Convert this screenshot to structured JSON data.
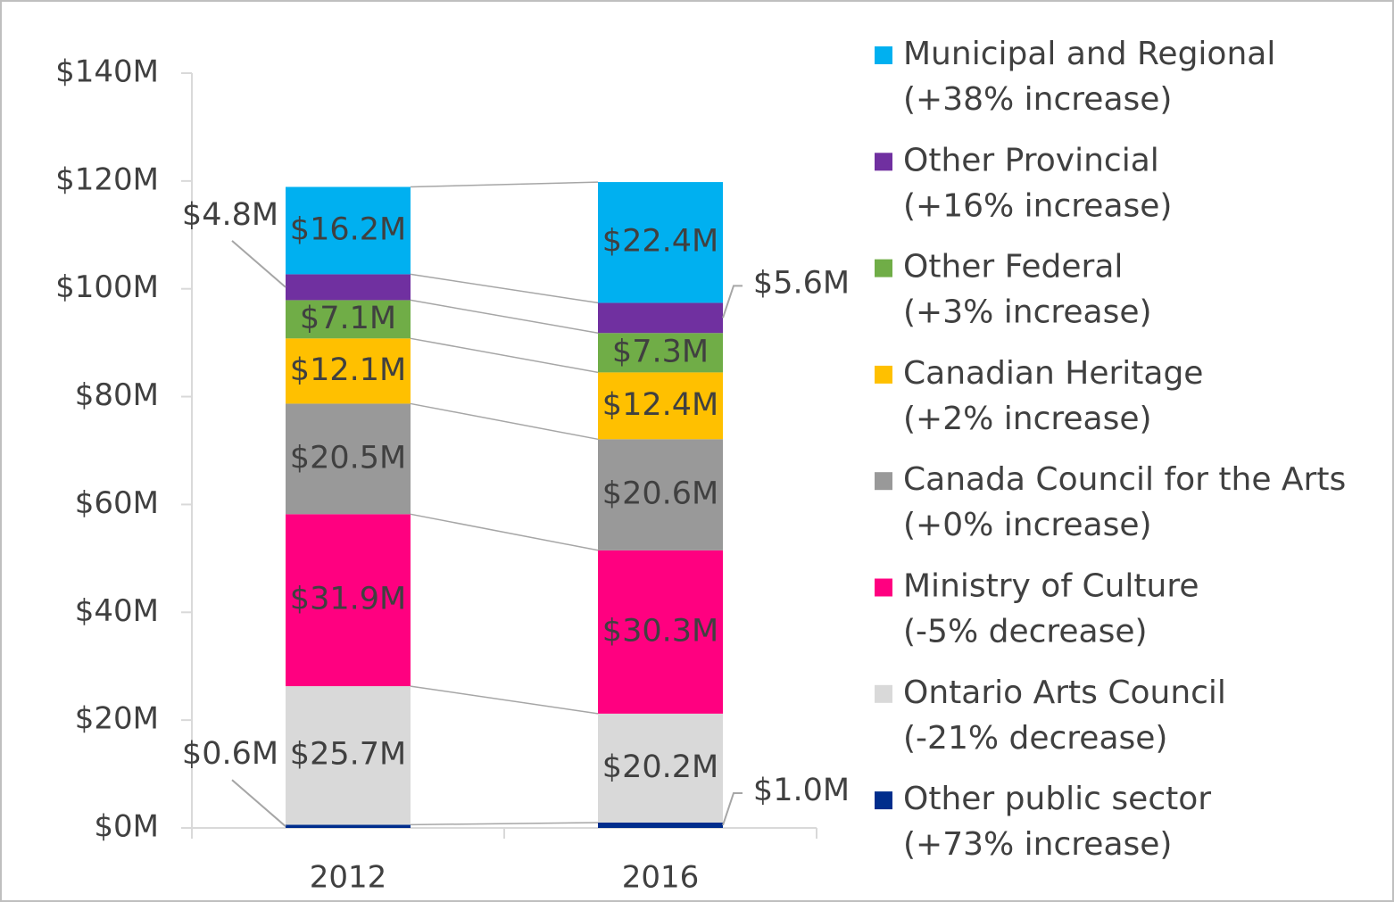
{
  "chart_data": {
    "type": "stacked_bar",
    "categories": [
      "2012",
      "2016"
    ],
    "ylim": [
      0,
      140
    ],
    "yticks": [
      {
        "value": 0,
        "label": "$0M"
      },
      {
        "value": 20,
        "label": "$20M"
      },
      {
        "value": 40,
        "label": "$40M"
      },
      {
        "value": 60,
        "label": "$60M"
      },
      {
        "value": 80,
        "label": "$80M"
      },
      {
        "value": 100,
        "label": "$100M"
      },
      {
        "value": 120,
        "label": "$120M"
      },
      {
        "value": 140,
        "label": "$140M"
      }
    ],
    "series": [
      {
        "name": "Other public sector",
        "change": "(+73% increase)",
        "color": "#002d8c",
        "values": [
          0.6,
          1.0
        ],
        "value_labels": [
          "$0.6M",
          "$1.0M"
        ]
      },
      {
        "name": "Ontario Arts Council",
        "change": "(-21% decrease)",
        "color": "#d9d9d9",
        "values": [
          25.7,
          20.2
        ],
        "value_labels": [
          "$25.7M",
          "$20.2M"
        ]
      },
      {
        "name": "Ministry of Culture",
        "change": "(-5% decrease)",
        "color": "#ff0080",
        "values": [
          31.9,
          30.3
        ],
        "value_labels": [
          "$31.9M",
          "$30.3M"
        ]
      },
      {
        "name": "Canada Council for the Arts",
        "change": "(+0% increase)",
        "color": "#999999",
        "values": [
          20.5,
          20.6
        ],
        "value_labels": [
          "$20.5M",
          "$20.6M"
        ]
      },
      {
        "name": "Canadian Heritage",
        "change": "(+2% increase)",
        "color": "#ffc000",
        "values": [
          12.1,
          12.4
        ],
        "value_labels": [
          "$12.1M",
          "$12.4M"
        ]
      },
      {
        "name": "Other Federal",
        "change": "(+3% increase)",
        "color": "#70ad47",
        "values": [
          7.1,
          7.3
        ],
        "value_labels": [
          "$7.1M",
          "$7.3M"
        ]
      },
      {
        "name": "Other Provincial",
        "change": "(+16% increase)",
        "color": "#7030a0",
        "values": [
          4.8,
          5.6
        ],
        "value_labels": [
          "$4.8M",
          "$5.6M"
        ]
      },
      {
        "name": "Municipal and Regional",
        "change": "(+38% increase)",
        "color": "#00b0f0",
        "values": [
          16.2,
          22.4
        ],
        "value_labels": [
          "$16.2M",
          "$22.4M"
        ]
      }
    ]
  }
}
